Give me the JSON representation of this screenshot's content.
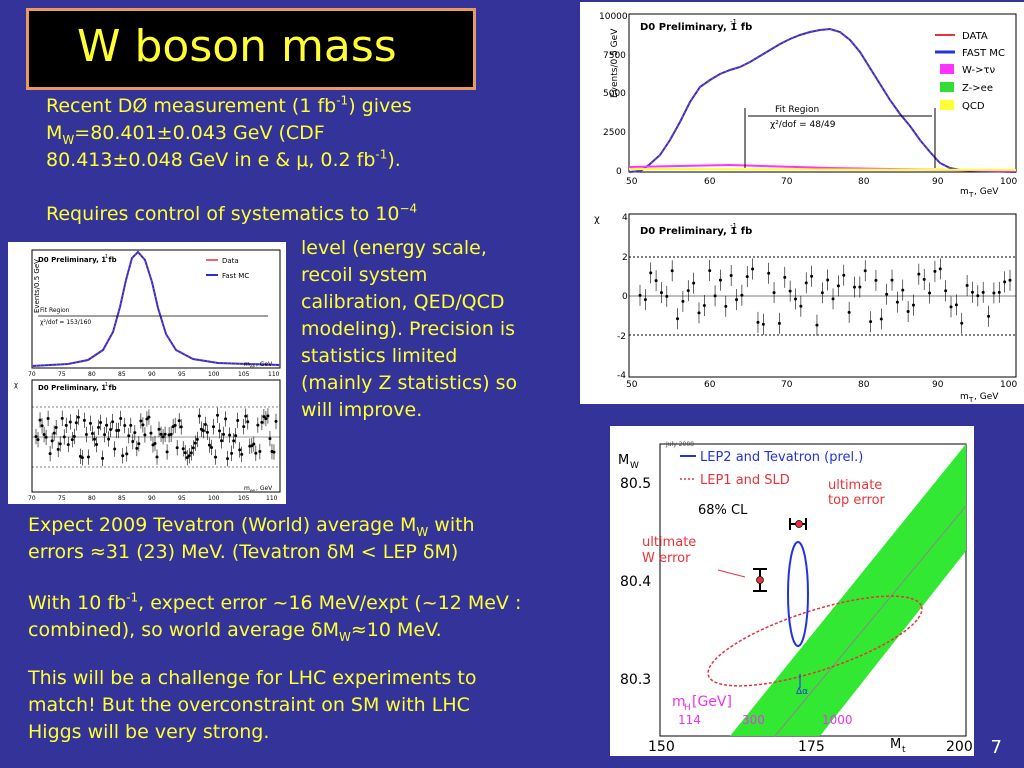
{
  "slide": {
    "title": "W boson mass",
    "page_number": "7",
    "p1": {
      "a": "Recent DØ measurement (1 fb",
      "sup1": "-1",
      "b": ") gives",
      "c": "M",
      "sub": "W",
      "d": "=80.401±0.043 GeV ",
      "e": "(CDF",
      "f": "80.413±0.048 GeV in e & μ, 0.2 fb",
      "sup2": "-1",
      "g": ")."
    },
    "p2": {
      "a": "Requires control of systematics to 10",
      "sup": "−4"
    },
    "p2_cont": [
      "level (energy scale,",
      "recoil system",
      "calibration, QED/QCD",
      "modeling).  Precision is",
      "statistics limited",
      "(mainly Z statistics) so",
      "will improve."
    ],
    "p3": {
      "a": "Expect 2009 Tevatron (World) average M",
      "sub": "W",
      "b": " with",
      "c": "errors ≈31 (23) MeV.  (Tevatron δM < LEP δM)"
    },
    "p4": {
      "a": "With 10 fb",
      "sup": "-1",
      "b": ", expect error ~16 MeV/expt (~12 MeV :",
      "c": "combined), so world average  δM",
      "sub": "W",
      "d": "≈10 MeV."
    },
    "p5": [
      "This will be a challenge for LHC experiments to",
      "match!   But the overconstraint on SM with LHC",
      "Higgs will be very strong."
    ]
  },
  "plots": {
    "w_main": {
      "label": "D0 Preliminary, 1 fb",
      "label_sup": "-1",
      "ylabel": "Events/0.5 GeV",
      "xlabel": "m",
      "xlabel_sub": "T",
      "xlabel_unit": ", GeV",
      "legend": [
        "DATA",
        "FAST MC",
        "W->τν",
        "Z->ee",
        "QCD"
      ],
      "legend_colors": [
        "#e8333a",
        "#2233dd",
        "#ff33ff",
        "#33dd33",
        "#ffff33"
      ],
      "fit_region": "Fit Region",
      "chi2": "χ²/dof = 48/49",
      "x_ticks": [
        "50",
        "60",
        "70",
        "80",
        "90",
        "100"
      ],
      "y_ticks": [
        "0",
        "2500",
        "5000",
        "7500",
        "10000"
      ]
    },
    "w_chi": {
      "label": "D0 Preliminary, 1 fb",
      "label_sup": "-1",
      "ylabel": "χ",
      "x_ticks": [
        "50",
        "60",
        "70",
        "80",
        "90",
        "100"
      ],
      "y_ticks": [
        "4",
        "2",
        "0",
        "-2",
        "-4"
      ],
      "xlabel": "m",
      "xlabel_sub": "T",
      "xlabel_unit": ", GeV"
    },
    "z_main": {
      "label": "D0 Preliminary, 1 fb",
      "label_sup": "-1",
      "ylabel": "Events/0.5 GeV",
      "legend": [
        "Data",
        "Fast MC"
      ],
      "fit_region": "Fit Region",
      "chi2": "χ²/dof = 153/160",
      "x_ticks": [
        "70",
        "75",
        "80",
        "85",
        "90",
        "95",
        "100",
        "105",
        "110"
      ],
      "xlabel": "m",
      "xlabel_sub": "ee",
      "xlabel_unit": ", GeV"
    },
    "z_chi": {
      "label": "D0 Preliminary, 1 fb",
      "label_sup": "-1",
      "ylabel": "χ",
      "x_ticks": [
        "70",
        "75",
        "80",
        "85",
        "90",
        "95",
        "100",
        "105",
        "110"
      ],
      "xlabel": "m",
      "xlabel_sub": "ee",
      "xlabel_unit": ", GeV"
    },
    "mw_mt": {
      "date": "July 2008",
      "legend1": "LEP2 and Tevatron (prel.)",
      "legend2": "LEP1 and SLD",
      "cl": "68% CL",
      "mw_label": "M",
      "mw_sub": "W",
      "mt_label": "M",
      "mt_sub": "t",
      "ultimate_top_1": "ultimate",
      "ultimate_top_2": "top error",
      "ultimate_w_1": "ultimate",
      "ultimate_w_2": "W error",
      "mh_label": "m",
      "mh_sub": "H",
      "mh_unit": " [GeV]",
      "mh_values": [
        "114",
        "300",
        "1000"
      ],
      "delta_alpha": "Δα",
      "y_ticks": [
        "80.5",
        "80.4",
        "80.3"
      ],
      "x_ticks": [
        "150",
        "175",
        "200"
      ]
    }
  },
  "colors": {
    "background": "#33339a",
    "text": "#ffff33",
    "title_border": "#e89a60"
  }
}
